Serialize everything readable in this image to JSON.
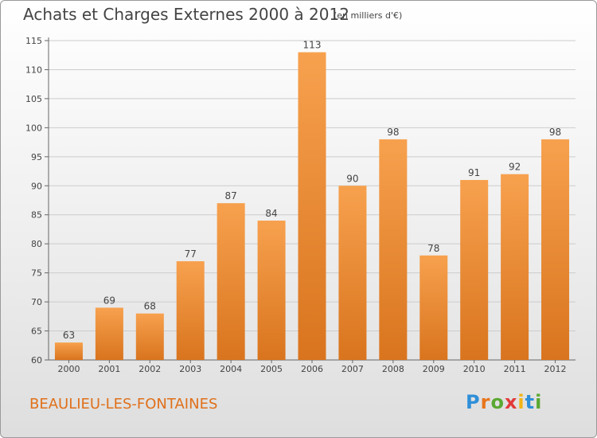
{
  "header": {
    "title": "Achats et Charges Externes 2000 à 2012",
    "subtitle": "(en milliers d'€)"
  },
  "footer": {
    "commune": "BEAULIEU-LES-FONTAINES",
    "logo_letters": [
      "P",
      "r",
      "o",
      "x",
      "i",
      "t",
      "i"
    ],
    "logo_colors": [
      "#2f8fd8",
      "#e8761c",
      "#5aa832",
      "#e23a3a",
      "#f2b416",
      "#2f8fd8",
      "#5aa832"
    ]
  },
  "colors": {
    "bar_top": "#f7a14e",
    "bar_bottom": "#d9741e",
    "grid": "#cccccc",
    "axis_text": "#444444"
  },
  "chart_data": {
    "type": "bar",
    "title": "Achats et Charges Externes 2000 à 2012",
    "subtitle": "(en milliers d'€)",
    "categories": [
      "2000",
      "2001",
      "2002",
      "2003",
      "2004",
      "2005",
      "2006",
      "2007",
      "2008",
      "2009",
      "2010",
      "2011",
      "2012"
    ],
    "values": [
      63,
      69,
      68,
      77,
      87,
      84,
      113,
      90,
      98,
      78,
      91,
      92,
      98
    ],
    "ylim": [
      60,
      115
    ],
    "yticks": [
      60,
      65,
      70,
      75,
      80,
      85,
      90,
      95,
      100,
      105,
      110,
      115
    ],
    "grid": true,
    "data_labels": true
  }
}
